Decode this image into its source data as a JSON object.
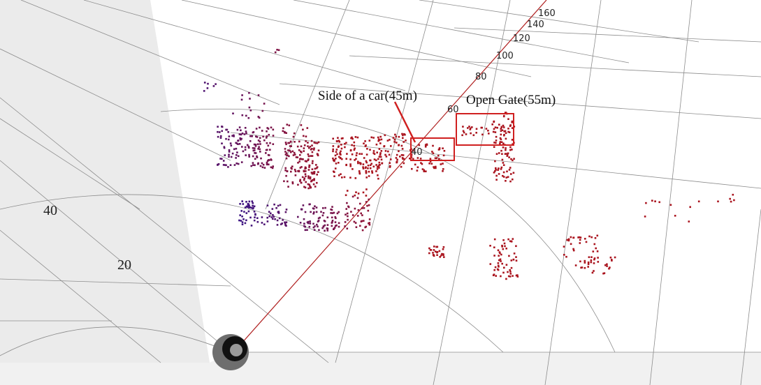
{
  "annotations": [
    {
      "label": "Side of a car(45m)"
    },
    {
      "label": "Open Gate(55m)"
    }
  ],
  "range_labels": [
    "40",
    "60",
    "80",
    "100",
    "120",
    "140",
    "160"
  ],
  "grid_labels": [
    "40",
    "20"
  ]
}
